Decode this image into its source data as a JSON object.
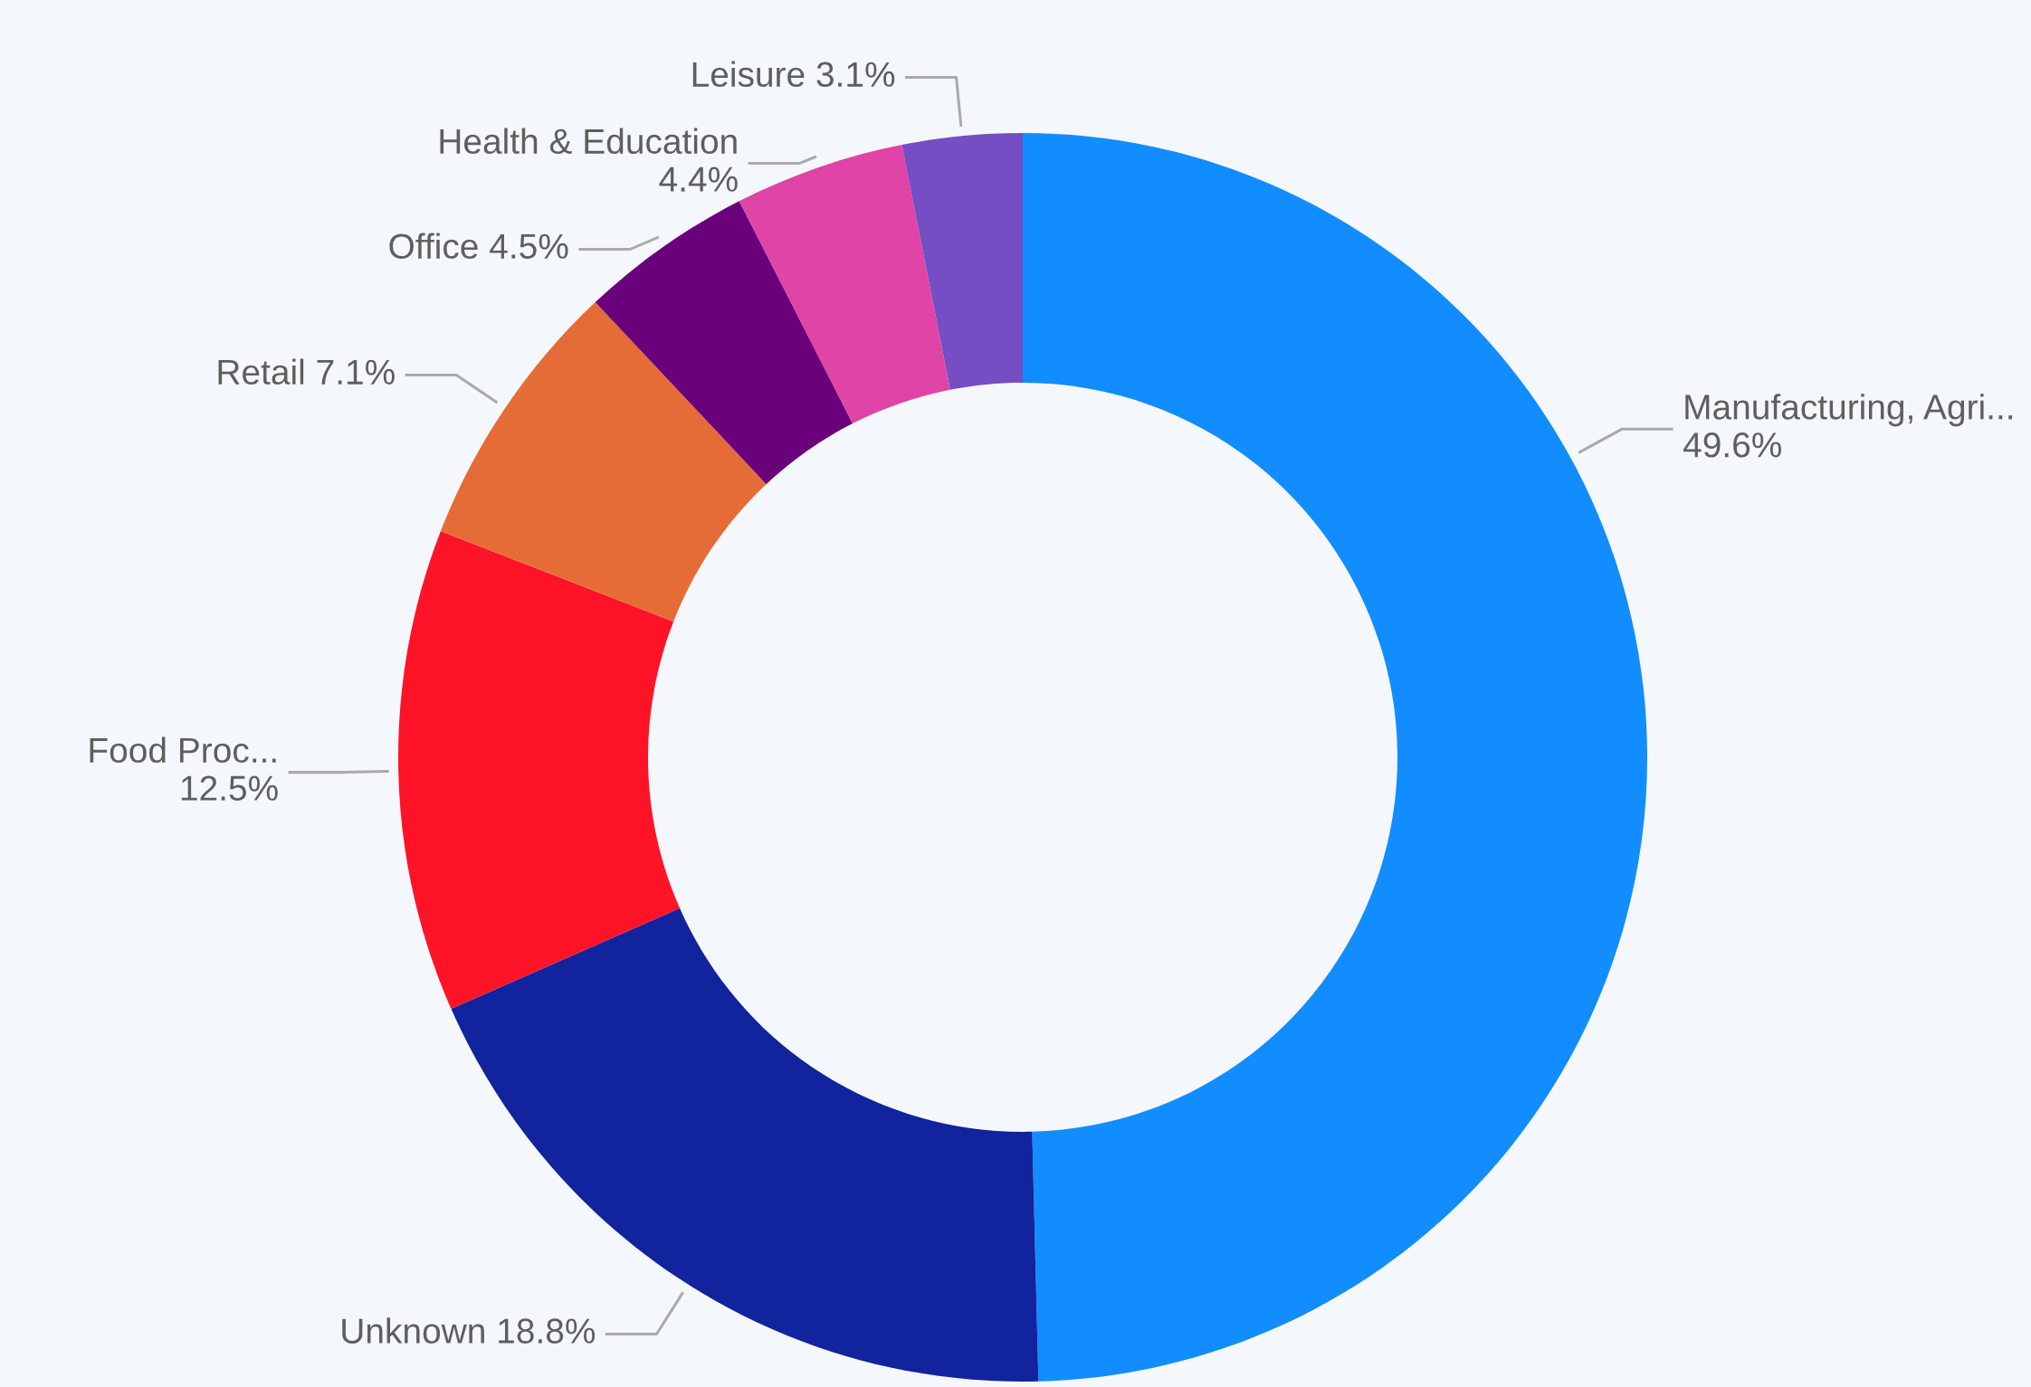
{
  "chart_data": {
    "type": "donut",
    "categories": [
      "Manufacturing, Agri...",
      "Unknown",
      "Food Proc...",
      "Retail",
      "Office",
      "Health & Education",
      "Leisure"
    ],
    "values": [
      49.6,
      18.8,
      12.5,
      7.1,
      4.5,
      4.4,
      3.1
    ],
    "value_labels": [
      "49.6%",
      "18.8%",
      "12.5%",
      "7.1%",
      "4.5%",
      "4.4%",
      "3.1%"
    ],
    "colors": [
      "#118dff",
      "#12239e",
      "#ff1327",
      "#e66c37",
      "#6b007b",
      "#e044a7",
      "#744ec2"
    ]
  }
}
